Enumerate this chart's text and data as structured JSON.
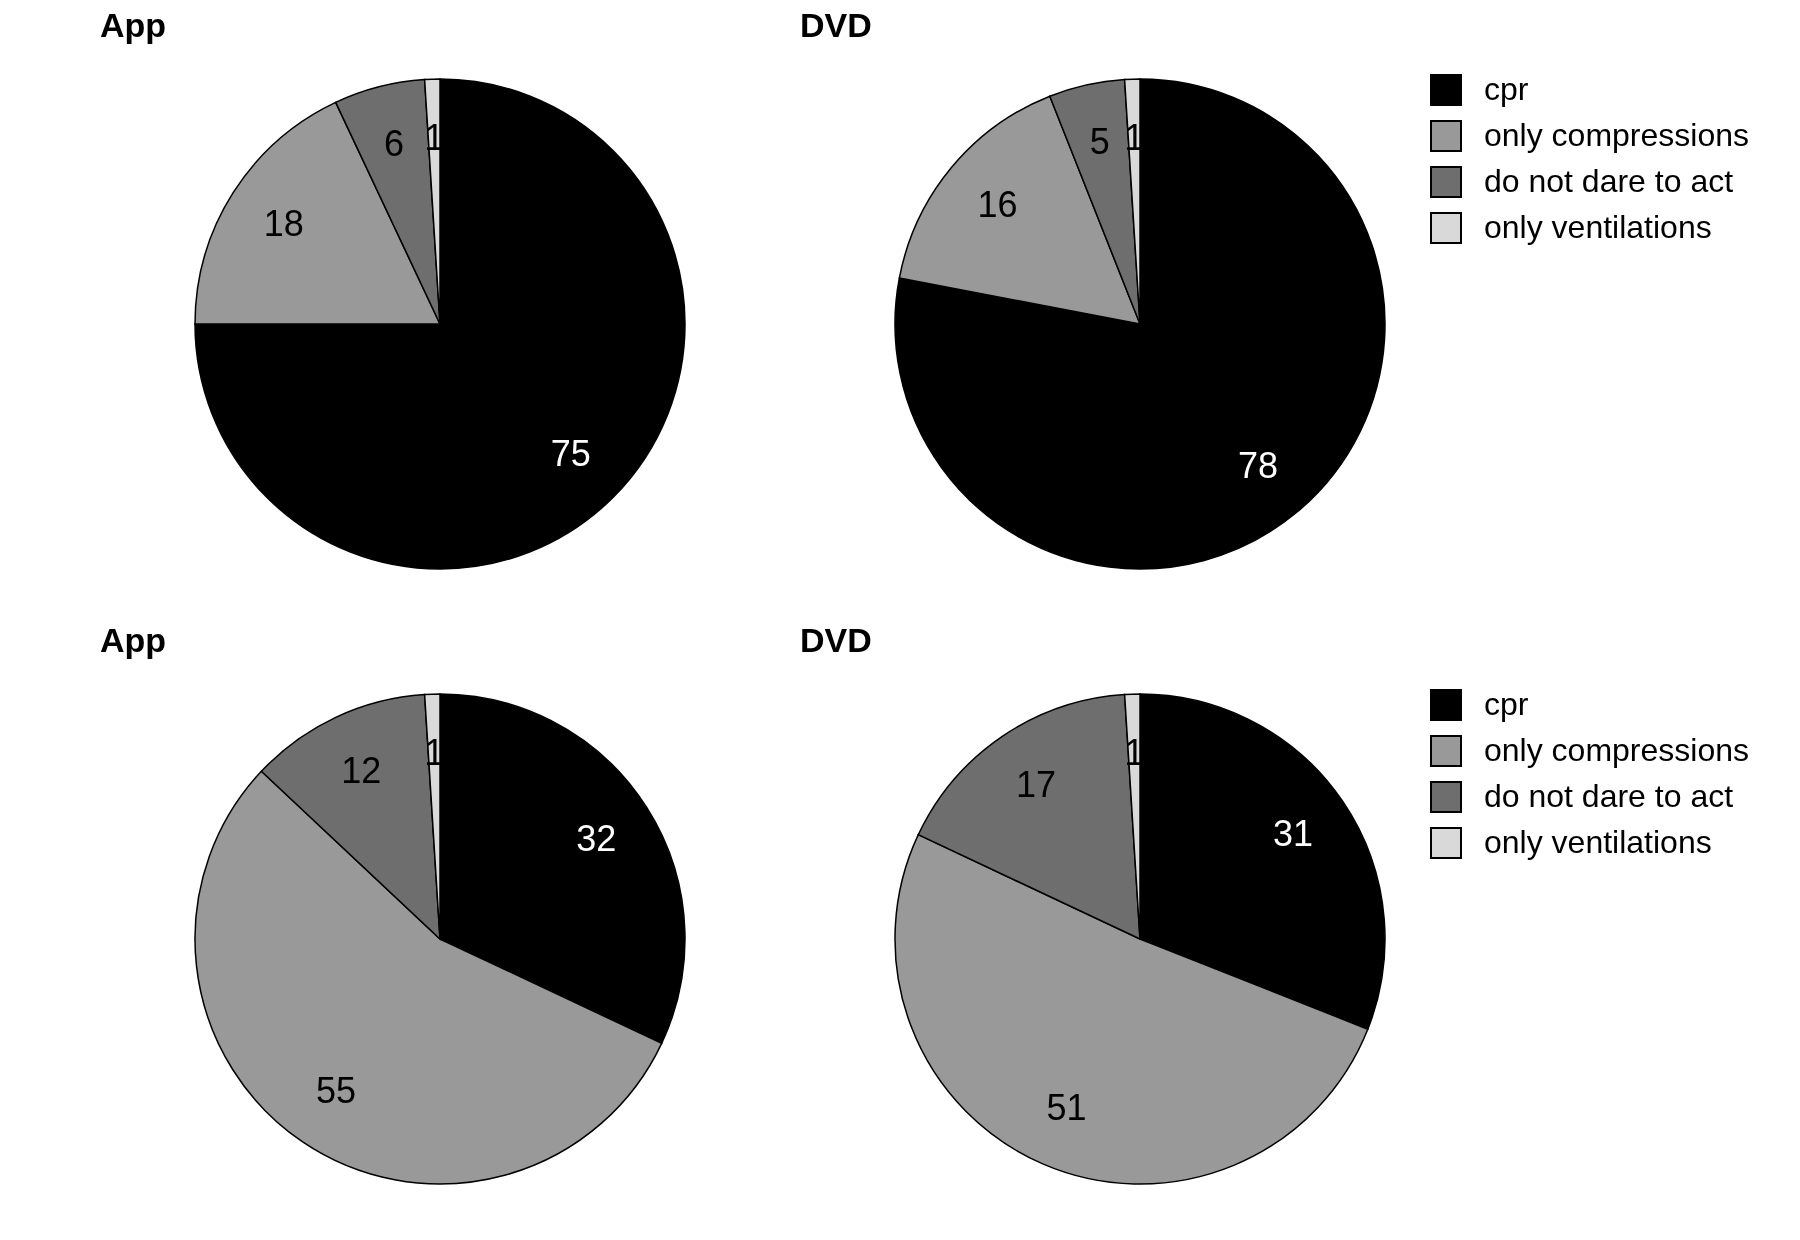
{
  "chart_data": [
    {
      "type": "pie",
      "title": "App",
      "categories": [
        null,
        null,
        null,
        null
      ],
      "values": [
        75,
        18,
        6,
        1
      ],
      "colors": [
        "#000000",
        "#999999",
        "#6e6e6e",
        "#d9d9d9"
      ],
      "data_labels": true
    },
    {
      "type": "pie",
      "title": "DVD",
      "categories": [
        "cpr",
        "only compressions",
        "do not dare to act",
        "only ventilations"
      ],
      "values": [
        78,
        16,
        5,
        1
      ],
      "colors": [
        "#000000",
        "#999999",
        "#6e6e6e",
        "#d9d9d9"
      ],
      "data_labels": true,
      "legend": "right"
    },
    {
      "type": "pie",
      "title": "App",
      "categories": [
        null,
        null,
        null,
        null
      ],
      "values": [
        32,
        55,
        12,
        1
      ],
      "colors": [
        "#000000",
        "#999999",
        "#6e6e6e",
        "#d9d9d9"
      ],
      "data_labels": true
    },
    {
      "type": "pie",
      "title": "DVD",
      "categories": [
        "cpr",
        "only compressions",
        "do not dare to act",
        "only ventilations"
      ],
      "values": [
        31,
        51,
        17,
        1
      ],
      "colors": [
        "#000000",
        "#999999",
        "#6e6e6e",
        "#d9d9d9"
      ],
      "data_labels": true,
      "legend": "right"
    }
  ]
}
